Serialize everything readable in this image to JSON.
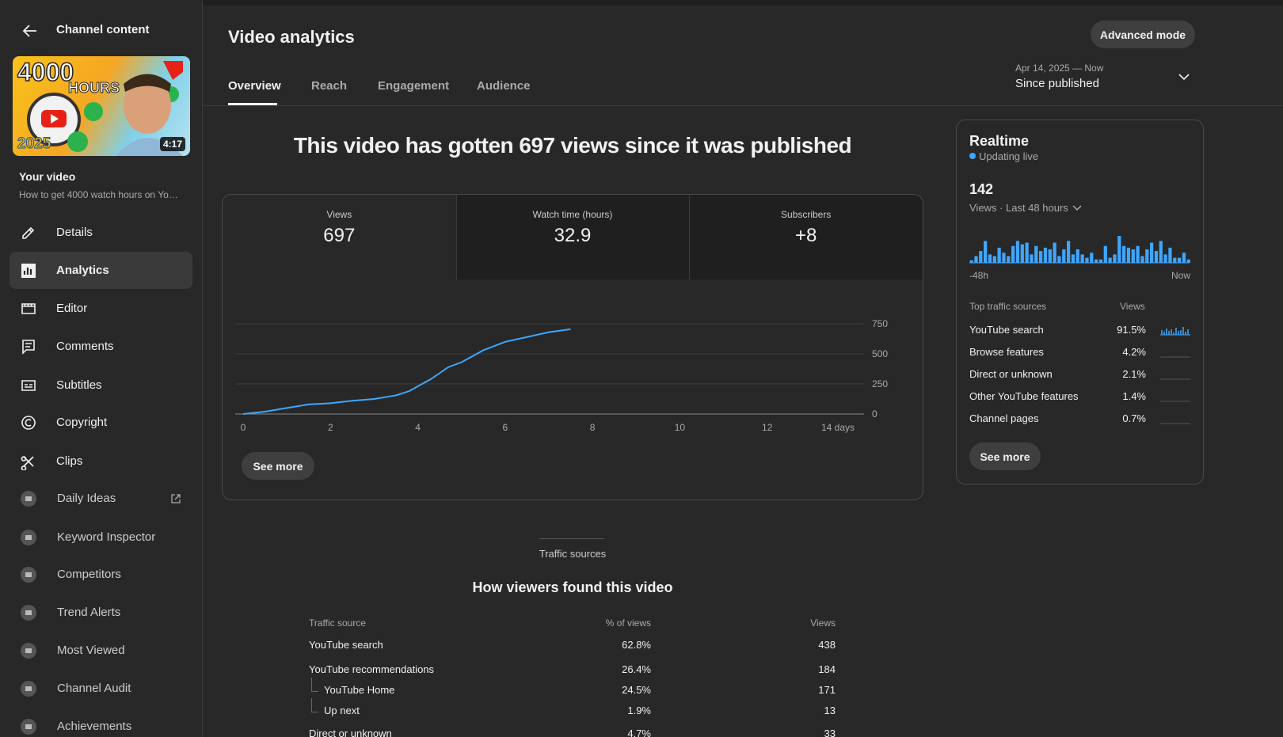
{
  "sidebar": {
    "back_title": "Channel content",
    "thumbnail": {
      "headline": "4000",
      "subhead": "HOURS",
      "year": "2025",
      "duration": "4:17"
    },
    "video_label": "Your video",
    "video_title": "How to get 4000 watch hours on Yo…",
    "nav": [
      {
        "label": "Details"
      },
      {
        "label": "Analytics",
        "selected": true
      },
      {
        "label": "Editor"
      },
      {
        "label": "Comments"
      },
      {
        "label": "Subtitles"
      },
      {
        "label": "Copyright"
      },
      {
        "label": "Clips"
      },
      {
        "label": "Daily Ideas",
        "extension": true,
        "external": true
      },
      {
        "label": "Keyword Inspector",
        "extension": true
      },
      {
        "label": "Competitors",
        "extension": true
      },
      {
        "label": "Trend Alerts",
        "extension": true
      },
      {
        "label": "Most Viewed",
        "extension": true
      },
      {
        "label": "Channel Audit",
        "extension": true
      },
      {
        "label": "Achievements",
        "extension": true
      }
    ]
  },
  "header": {
    "title": "Video analytics",
    "button": "Advanced mode",
    "tabs": [
      {
        "label": "Overview",
        "selected": true
      },
      {
        "label": "Reach"
      },
      {
        "label": "Engagement"
      },
      {
        "label": "Audience"
      }
    ],
    "date_range": {
      "range": "Apr 14, 2025 — Now",
      "label": "Since published"
    }
  },
  "overview": {
    "headline": "This video has gotten 697 views since it was published",
    "metrics": [
      {
        "label": "Views",
        "value": "697"
      },
      {
        "label": "Watch time (hours)",
        "value": "32.9"
      },
      {
        "label": "Subscribers",
        "value": "+8"
      }
    ],
    "button": "See more"
  },
  "chart_data": {
    "type": "line",
    "color": "#3ea6ff",
    "x": [
      0,
      0.5,
      1,
      1.5,
      2,
      2.5,
      3,
      3.5,
      3.8,
      4,
      4.3,
      4.7,
      5,
      5.5,
      6,
      6.5,
      7,
      7.4,
      7.5
    ],
    "values": [
      0,
      20,
      50,
      80,
      90,
      110,
      125,
      155,
      190,
      230,
      290,
      390,
      430,
      530,
      600,
      640,
      680,
      700,
      705
    ],
    "xlim": [
      0,
      14
    ],
    "xticks": [
      0,
      2,
      4,
      6,
      8,
      10,
      12,
      {
        "value": 14,
        "label": "14 days"
      }
    ],
    "ylim": [
      0,
      750
    ],
    "yticks": [
      0,
      250,
      500,
      750
    ],
    "grid": true
  },
  "realtime": {
    "title": "Realtime",
    "status": "Updating live",
    "count": "142",
    "metric_label": "Views · Last 48 hours",
    "bars": {
      "type": "bar",
      "color": "#3ea6ff",
      "values": [
        3,
        8,
        14,
        26,
        10,
        8,
        18,
        12,
        8,
        20,
        26,
        22,
        24,
        10,
        20,
        14,
        18,
        16,
        24,
        8,
        16,
        26,
        10,
        16,
        10,
        6,
        12,
        4,
        4,
        20,
        6,
        10,
        32,
        20,
        18,
        16,
        20,
        8,
        16,
        24,
        14,
        26,
        10,
        18,
        6,
        6,
        12,
        4
      ],
      "start_label": "-48h",
      "end_label": "Now"
    },
    "sources_header": "Top traffic sources",
    "views_header": "Views",
    "sources": [
      {
        "source": "YouTube search",
        "share": "91.5%"
      },
      {
        "source": "Browse features",
        "share": "4.2%"
      },
      {
        "source": "Direct or unknown",
        "share": "2.1%"
      },
      {
        "source": "Other YouTube features",
        "share": "1.4%"
      },
      {
        "source": "Channel pages",
        "share": "0.7%"
      }
    ],
    "button": "See more"
  },
  "traffic": {
    "section_label": "Traffic sources",
    "title": "How viewers found this video",
    "columns": [
      "Traffic source",
      "% of views",
      "Views"
    ],
    "rows": [
      {
        "source": "YouTube search",
        "percent": "62.8%",
        "views": "438",
        "level": 0
      },
      {
        "source": "YouTube recommendations",
        "percent": "26.4%",
        "views": "184",
        "level": 0
      },
      {
        "source": "YouTube Home",
        "percent": "24.5%",
        "views": "171",
        "level": 1
      },
      {
        "source": "Up next",
        "percent": "1.9%",
        "views": "13",
        "level": 1
      },
      {
        "source": "Direct or unknown",
        "percent": "4.7%",
        "views": "33",
        "level": 0
      }
    ]
  }
}
